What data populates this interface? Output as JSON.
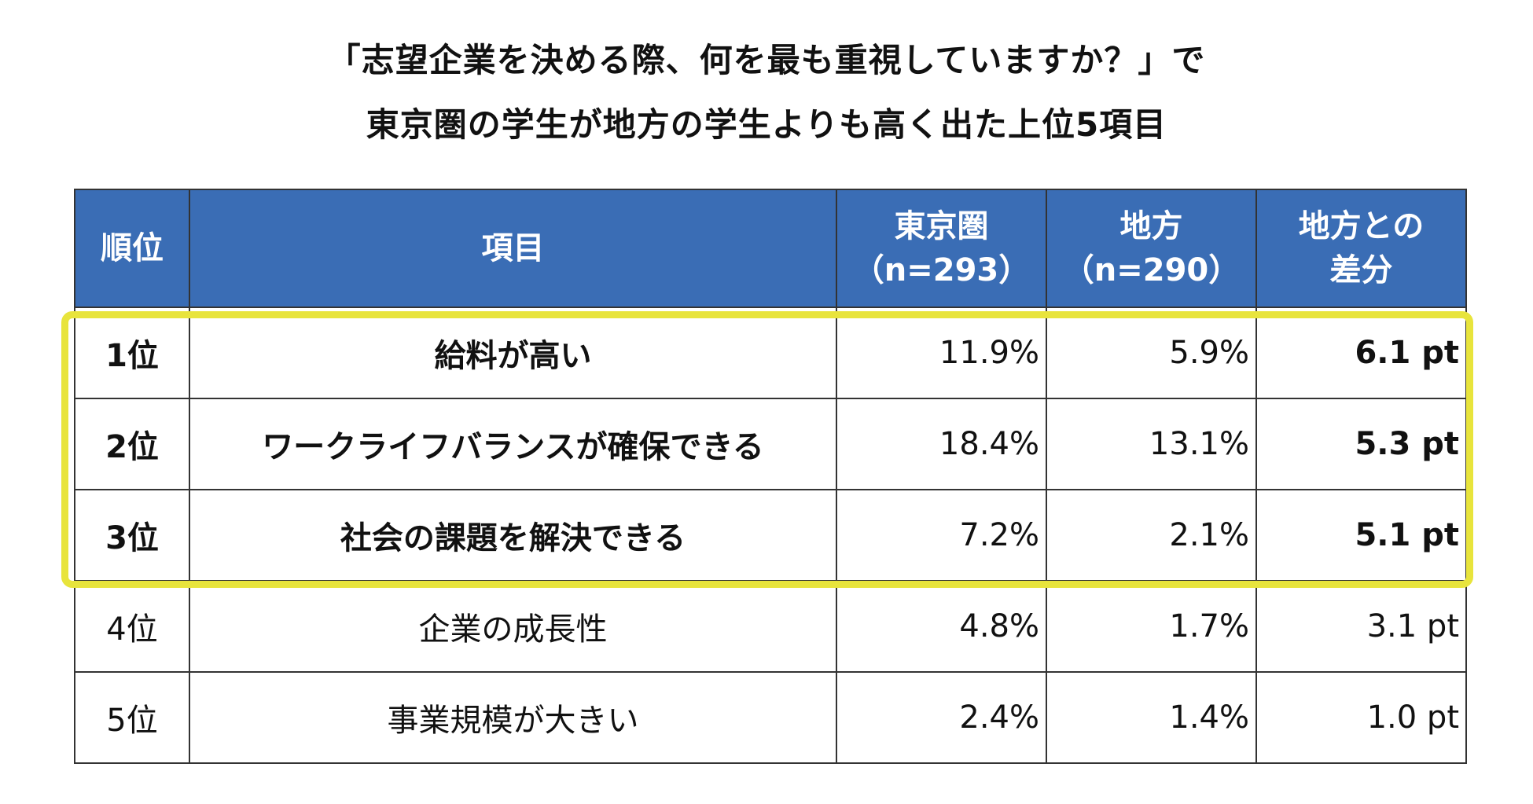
{
  "title": {
    "line1": "「志望企業を決める際、何を最も重視していますか？」で",
    "line2": "東京圏の学生が地方の学生よりも高く出た上位5項目"
  },
  "table": {
    "headers": {
      "rank": "順位",
      "item": "項目",
      "tokyo_line1": "東京圏",
      "tokyo_line2": "（n=293）",
      "local_line1": "地方",
      "local_line2": "（n=290）",
      "diff_line1": "地方との",
      "diff_line2": "差分"
    },
    "rows": [
      {
        "rank": "1位",
        "item": "給料が高い",
        "tokyo": "11.9%",
        "local": "5.9%",
        "diff": "6.1 pt"
      },
      {
        "rank": "2位",
        "item": "ワークライフバランスが確保できる",
        "tokyo": "18.4%",
        "local": "13.1%",
        "diff": "5.3 pt"
      },
      {
        "rank": "3位",
        "item": "社会の課題を解決できる",
        "tokyo": "7.2%",
        "local": "2.1%",
        "diff": "5.1 pt"
      },
      {
        "rank": "4位",
        "item": "企業の成長性",
        "tokyo": "4.8%",
        "local": "1.7%",
        "diff": "3.1 pt"
      },
      {
        "rank": "5位",
        "item": "事業規模が大きい",
        "tokyo": "2.4%",
        "local": "1.4%",
        "diff": "1.0 pt"
      }
    ]
  },
  "colors": {
    "header_bg": "#3a6db5",
    "highlight": "#e8e43c"
  },
  "chart_data": {
    "type": "table",
    "title": "「志望企業を決める際、何を最も重視していますか？」で 東京圏の学生が地方の学生よりも高く出た上位5項目",
    "columns": [
      "順位",
      "項目",
      "東京圏（n=293）",
      "地方（n=290）",
      "地方との差分"
    ],
    "categories": [
      "給料が高い",
      "ワークライフバランスが確保できる",
      "社会の課題を解決できる",
      "企業の成長性",
      "事業規模が大きい"
    ],
    "series": [
      {
        "name": "東京圏（n=293）",
        "values": [
          11.9,
          18.4,
          7.2,
          4.8,
          2.4
        ]
      },
      {
        "name": "地方（n=290）",
        "values": [
          5.9,
          13.1,
          2.1,
          1.7,
          1.4
        ]
      },
      {
        "name": "地方との差分",
        "values": [
          6.1,
          5.3,
          5.1,
          3.1,
          1.0
        ]
      }
    ],
    "highlighted_ranks": [
      1,
      2,
      3
    ]
  }
}
